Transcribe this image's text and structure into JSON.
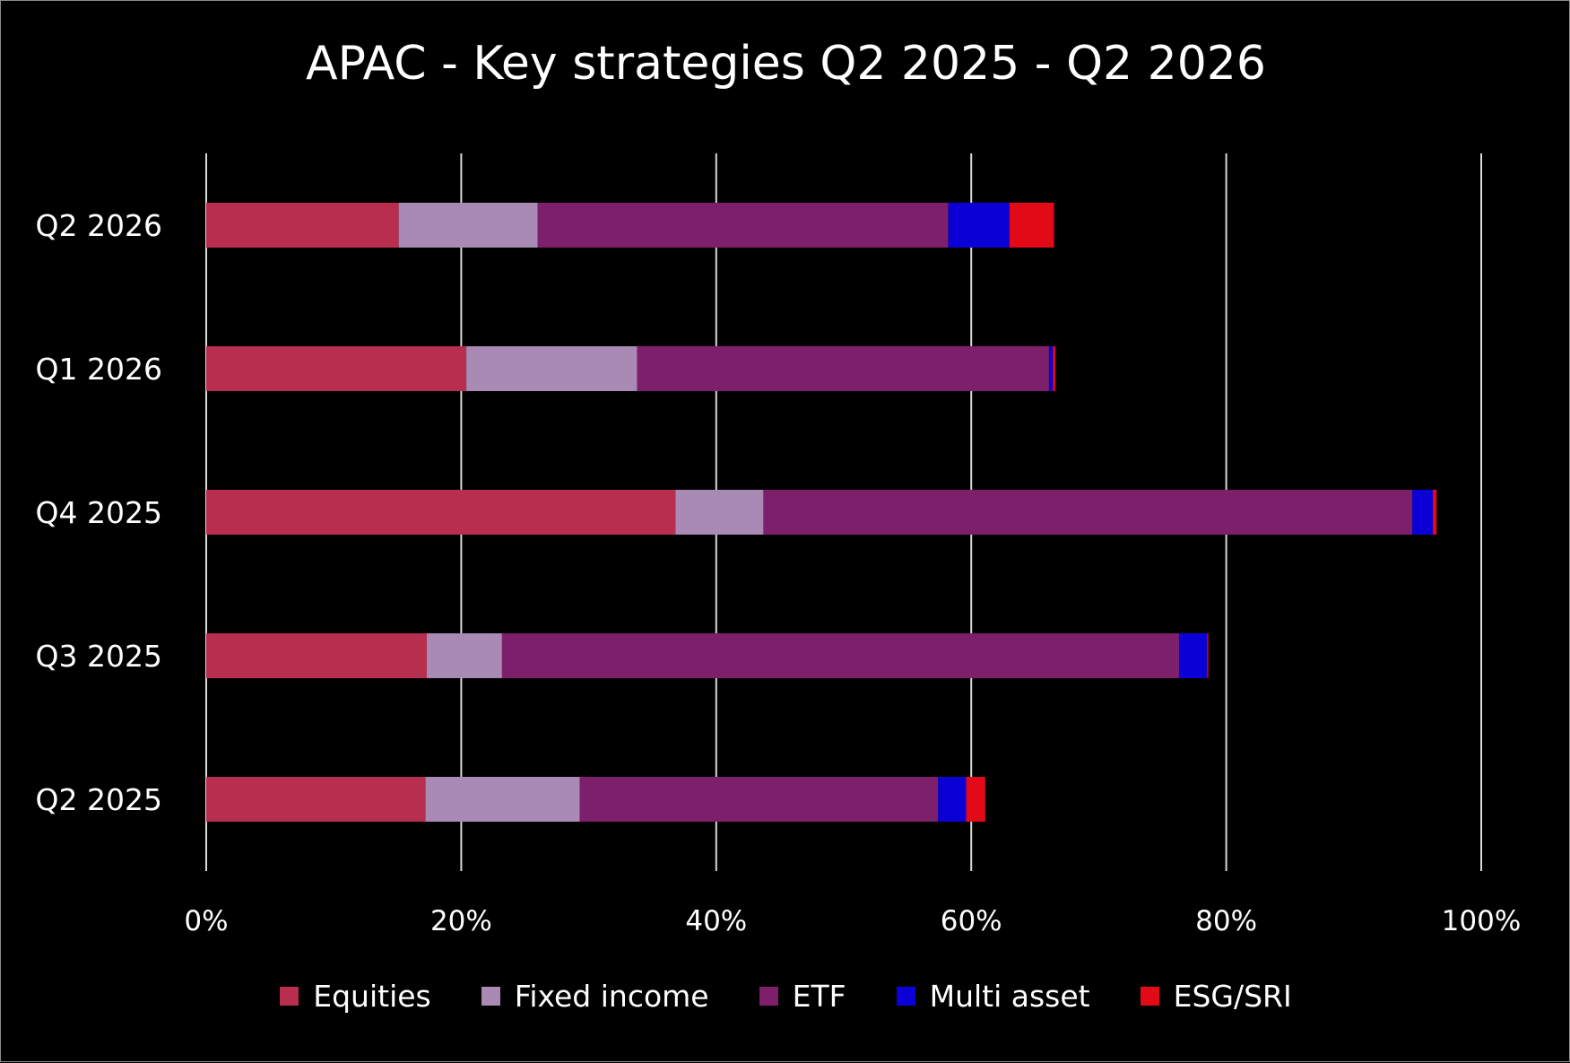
{
  "chart_data": {
    "type": "bar",
    "orientation": "horizontal",
    "stacked": true,
    "title": "APAC - Key strategies Q2 2025 - Q2 2026",
    "categories": [
      "Q2 2026",
      "Q1 2026",
      "Q4 2025",
      "Q3 2025",
      "Q2 2025"
    ],
    "series": [
      {
        "name": "Equities",
        "color": "#b82e4f",
        "values": [
          15.1,
          20.4,
          36.8,
          17.3,
          17.2
        ]
      },
      {
        "name": "Fixed income",
        "color": "#a98ab4",
        "values": [
          10.9,
          13.4,
          6.9,
          5.9,
          12.1
        ]
      },
      {
        "name": "ETF",
        "color": "#7e1f6c",
        "values": [
          32.2,
          32.3,
          50.9,
          53.1,
          28.1
        ]
      },
      {
        "name": "Multi asset",
        "color": "#0a00d6",
        "values": [
          4.8,
          0.3,
          1.6,
          2.2,
          2.2
        ]
      },
      {
        "name": "ESG/SRI",
        "color": "#e20a17",
        "values": [
          3.5,
          0.2,
          0.3,
          0.1,
          1.5
        ]
      }
    ],
    "xlim": [
      0,
      100
    ],
    "xticks": [
      "0%",
      "20%",
      "40%",
      "60%",
      "80%",
      "100%"
    ],
    "grid": true,
    "legend_position": "bottom",
    "background": "#000000",
    "gridline_color": "#d9d9d9",
    "text_color": "#ffffff"
  }
}
